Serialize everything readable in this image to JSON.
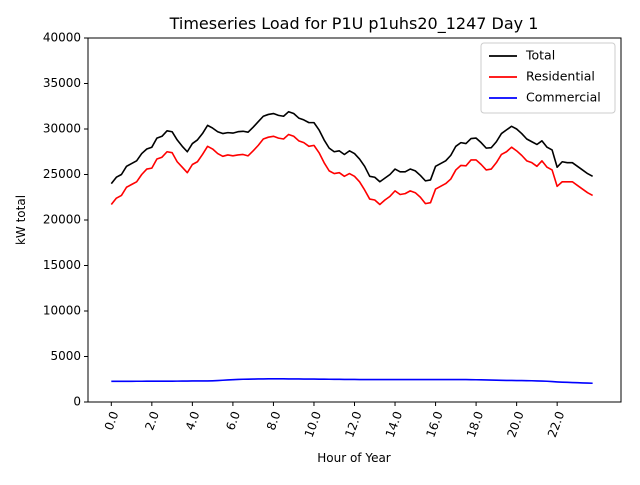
{
  "chart_data": {
    "type": "line",
    "title": "Timeseries Load for P1U p1uhs20_1247  Day 1",
    "xlabel": "Hour of Year",
    "ylabel": "kW total",
    "xlim": [
      -1.15,
      25.15
    ],
    "ylim": [
      0,
      40000
    ],
    "xticks": [
      0,
      2,
      4,
      6,
      8,
      10,
      12,
      14,
      16,
      18,
      20,
      22
    ],
    "xtick_labels": [
      "0.0",
      "2.0",
      "4.0",
      "6.0",
      "8.0",
      "10.0",
      "12.0",
      "14.0",
      "16.0",
      "18.0",
      "20.0",
      "22.0"
    ],
    "yticks": [
      0,
      5000,
      10000,
      15000,
      20000,
      25000,
      30000,
      35000,
      40000
    ],
    "ytick_labels": [
      "0",
      "5000",
      "10000",
      "15000",
      "20000",
      "25000",
      "30000",
      "35000",
      "40000"
    ],
    "legend_position": "top-right",
    "grid": false,
    "x": [
      0,
      0.25,
      0.5,
      0.75,
      1,
      1.25,
      1.5,
      1.75,
      2,
      2.25,
      2.5,
      2.75,
      3,
      3.25,
      3.5,
      3.75,
      4,
      4.25,
      4.5,
      4.75,
      5,
      5.25,
      5.5,
      5.75,
      6,
      6.25,
      6.5,
      6.75,
      7,
      7.25,
      7.5,
      7.75,
      8,
      8.25,
      8.5,
      8.75,
      9,
      9.25,
      9.5,
      9.75,
      10,
      10.25,
      10.5,
      10.75,
      11,
      11.25,
      11.5,
      11.75,
      12,
      12.25,
      12.5,
      12.75,
      13,
      13.25,
      13.5,
      13.75,
      14,
      14.25,
      14.5,
      14.75,
      15,
      15.25,
      15.5,
      15.75,
      16,
      16.25,
      16.5,
      16.75,
      17,
      17.25,
      17.5,
      17.75,
      18,
      18.25,
      18.5,
      18.75,
      19,
      19.25,
      19.5,
      19.75,
      20,
      20.25,
      20.5,
      20.75,
      21,
      21.25,
      21.5,
      21.75,
      22,
      22.25,
      22.5,
      22.75,
      23,
      23.25,
      23.5,
      23.75
    ],
    "series": [
      {
        "name": "Total",
        "color": "#000000",
        "values": [
          24000,
          24700,
          25000,
          25900,
          26200,
          26500,
          27300,
          27800,
          28000,
          29000,
          29200,
          29800,
          29700,
          28800,
          28100,
          27500,
          28400,
          28800,
          29500,
          30400,
          30100,
          29700,
          29500,
          29600,
          29550,
          29700,
          29750,
          29650,
          30200,
          30800,
          31400,
          31600,
          31700,
          31500,
          31400,
          31900,
          31700,
          31200,
          31000,
          30700,
          30700,
          29900,
          28800,
          27900,
          27500,
          27600,
          27200,
          27600,
          27300,
          26700,
          25900,
          24800,
          24700,
          24200,
          24600,
          25000,
          25600,
          25300,
          25300,
          25600,
          25400,
          24900,
          24300,
          24400,
          25900,
          26200,
          26500,
          27100,
          28100,
          28500,
          28400,
          28950,
          29000,
          28500,
          27900,
          27950,
          28600,
          29500,
          29900,
          30300,
          30000,
          29500,
          28900,
          28600,
          28300,
          28700,
          28000,
          27700,
          25800,
          26400,
          26300,
          26300,
          25900,
          25500,
          25100,
          24800
        ]
      },
      {
        "name": "Residential",
        "color": "#ff0000",
        "values": [
          21700,
          22400,
          22700,
          23600,
          23900,
          24200,
          25000,
          25600,
          25700,
          26700,
          26900,
          27500,
          27400,
          26400,
          25800,
          25200,
          26100,
          26400,
          27200,
          28100,
          27800,
          27300,
          27000,
          27150,
          27050,
          27150,
          27200,
          27050,
          27600,
          28200,
          28900,
          29100,
          29200,
          29000,
          28900,
          29400,
          29200,
          28700,
          28500,
          28100,
          28200,
          27400,
          26300,
          25400,
          25100,
          25200,
          24800,
          25100,
          24800,
          24200,
          23300,
          22300,
          22200,
          21700,
          22200,
          22600,
          23200,
          22800,
          22900,
          23200,
          23000,
          22500,
          21800,
          21900,
          23400,
          23700,
          24000,
          24500,
          25500,
          26000,
          25950,
          26600,
          26600,
          26100,
          25500,
          25600,
          26300,
          27200,
          27500,
          28000,
          27600,
          27100,
          26500,
          26300,
          25900,
          26500,
          25800,
          25500,
          23700,
          24200,
          24200,
          24200,
          23800,
          23400,
          23000,
          22700
        ]
      },
      {
        "name": "Commercial",
        "color": "#0000ff",
        "values": [
          2270,
          2270,
          2270,
          2270,
          2275,
          2280,
          2280,
          2285,
          2290,
          2290,
          2290,
          2290,
          2290,
          2295,
          2300,
          2300,
          2310,
          2310,
          2310,
          2310,
          2330,
          2360,
          2390,
          2420,
          2450,
          2480,
          2500,
          2510,
          2520,
          2530,
          2540,
          2550,
          2550,
          2550,
          2545,
          2540,
          2535,
          2530,
          2525,
          2520,
          2515,
          2510,
          2505,
          2500,
          2495,
          2490,
          2485,
          2480,
          2475,
          2470,
          2465,
          2465,
          2465,
          2465,
          2465,
          2465,
          2465,
          2465,
          2465,
          2465,
          2465,
          2465,
          2465,
          2465,
          2465,
          2465,
          2465,
          2465,
          2465,
          2465,
          2460,
          2455,
          2445,
          2435,
          2420,
          2405,
          2395,
          2385,
          2375,
          2365,
          2360,
          2355,
          2345,
          2335,
          2320,
          2305,
          2280,
          2250,
          2210,
          2180,
          2160,
          2140,
          2120,
          2100,
          2080,
          2060
        ]
      }
    ]
  }
}
